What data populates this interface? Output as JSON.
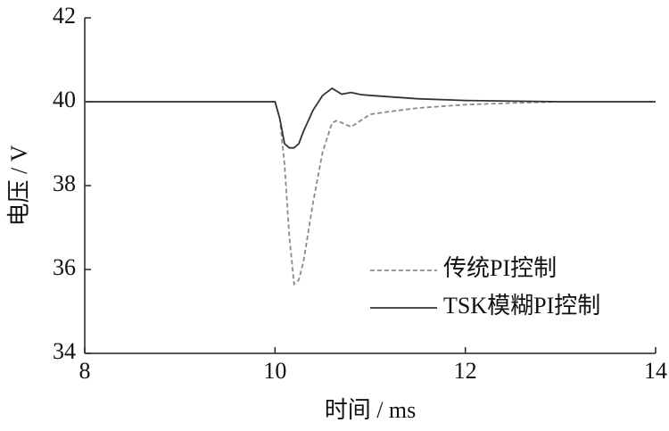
{
  "chart_data": {
    "type": "line",
    "x_label": "时间 / ms",
    "y_label": "电压 / V",
    "xlim": [
      8,
      14
    ],
    "xticks": [
      8,
      10,
      12,
      14
    ],
    "ylim": [
      34,
      42
    ],
    "yticks": [
      34,
      36,
      38,
      40,
      42
    ],
    "legend": "lower right",
    "series": [
      {
        "name": "传统PI控制",
        "color": "#8a8a8a",
        "dash": true,
        "x": [
          8,
          10,
          10.05,
          10.1,
          10.15,
          10.2,
          10.25,
          10.3,
          10.4,
          10.5,
          10.6,
          10.65,
          10.7,
          10.8,
          10.9,
          11,
          11.25,
          11.5,
          12,
          12.5,
          13,
          14
        ],
        "values": [
          40,
          40,
          39.6,
          38.5,
          36.8,
          35.65,
          35.75,
          36.2,
          37.6,
          38.8,
          39.5,
          39.55,
          39.5,
          39.4,
          39.55,
          39.7,
          39.78,
          39.85,
          39.93,
          39.97,
          40,
          40
        ]
      },
      {
        "name": "TSK模糊PI控制",
        "color": "#333333",
        "dash": false,
        "x": [
          8,
          10,
          10.05,
          10.1,
          10.15,
          10.2,
          10.25,
          10.3,
          10.4,
          10.5,
          10.6,
          10.65,
          10.7,
          10.8,
          10.9,
          11,
          11.5,
          12,
          13,
          14
        ],
        "values": [
          40,
          40,
          39.6,
          39.0,
          38.9,
          38.9,
          39.0,
          39.3,
          39.8,
          40.15,
          40.32,
          40.25,
          40.18,
          40.22,
          40.17,
          40.15,
          40.07,
          40.03,
          40,
          40
        ]
      }
    ]
  }
}
